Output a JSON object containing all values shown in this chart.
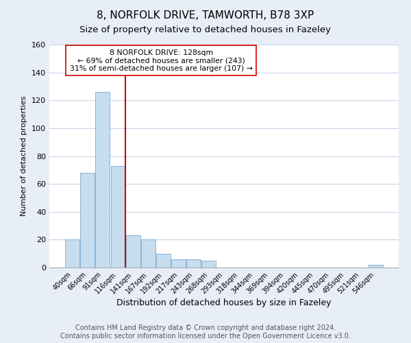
{
  "title": "8, NORFOLK DRIVE, TAMWORTH, B78 3XP",
  "subtitle": "Size of property relative to detached houses in Fazeley",
  "xlabel": "Distribution of detached houses by size in Fazeley",
  "ylabel": "Number of detached properties",
  "bar_labels": [
    "40sqm",
    "66sqm",
    "91sqm",
    "116sqm",
    "141sqm",
    "167sqm",
    "192sqm",
    "217sqm",
    "243sqm",
    "268sqm",
    "293sqm",
    "318sqm",
    "344sqm",
    "369sqm",
    "394sqm",
    "420sqm",
    "445sqm",
    "470sqm",
    "495sqm",
    "521sqm",
    "546sqm"
  ],
  "bar_values": [
    20,
    68,
    126,
    73,
    23,
    20,
    10,
    6,
    6,
    5,
    0,
    0,
    0,
    0,
    0,
    0,
    0,
    0,
    0,
    0,
    2
  ],
  "bar_color": "#c6ddf0",
  "bar_edge_color": "#8ab4d4",
  "vline_color": "#cc0000",
  "annotation_text": "8 NORFOLK DRIVE: 128sqm\n← 69% of detached houses are smaller (243)\n31% of semi-detached houses are larger (107) →",
  "annotation_box_color": "#ffffff",
  "annotation_box_edge_color": "#cc0000",
  "ylim": [
    0,
    160
  ],
  "yticks": [
    0,
    20,
    40,
    60,
    80,
    100,
    120,
    140,
    160
  ],
  "footer": "Contains HM Land Registry data © Crown copyright and database right 2024.\nContains public sector information licensed under the Open Government Licence v3.0.",
  "background_color": "#e8eef7",
  "plot_background_color": "#ffffff",
  "grid_color": "#c8d4e8",
  "title_fontsize": 11,
  "subtitle_fontsize": 9.5,
  "xlabel_fontsize": 9,
  "ylabel_fontsize": 8,
  "footer_fontsize": 7
}
